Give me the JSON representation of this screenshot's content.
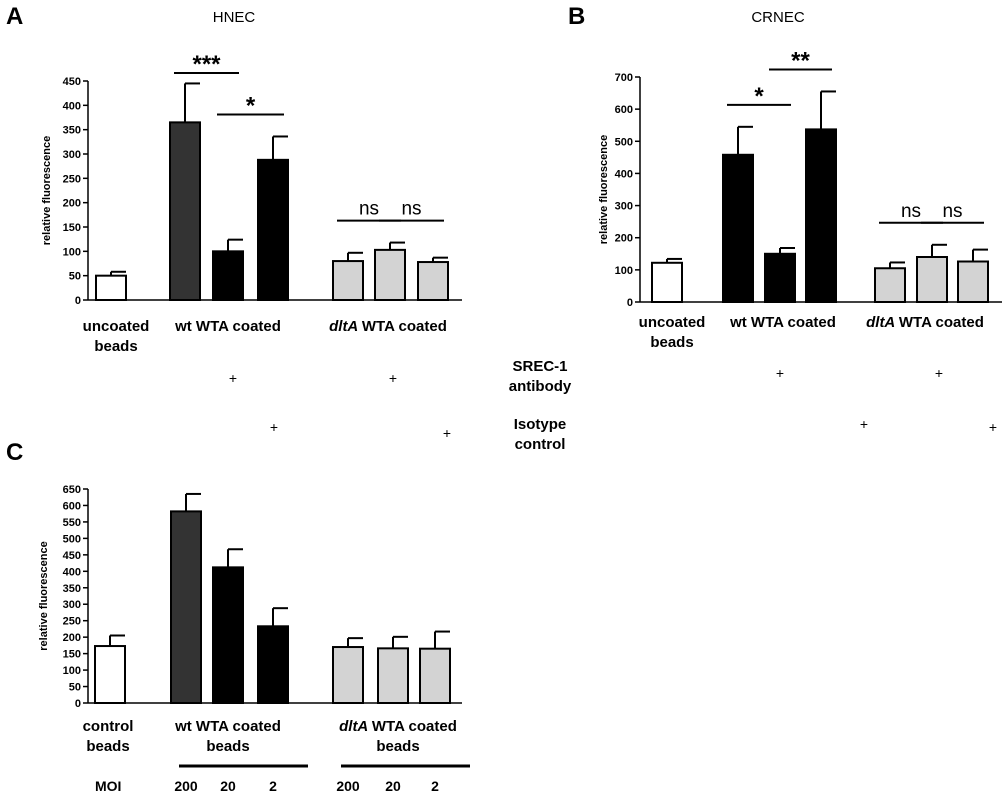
{
  "chart_data": [
    {
      "type": "bar",
      "panel": "A",
      "title": "HNEC",
      "ylabel": "relative fluorescence",
      "ylim": [
        0,
        450
      ],
      "yticks": [
        0,
        50,
        100,
        150,
        200,
        250,
        300,
        350,
        400,
        450
      ],
      "grid": false,
      "groups": [
        {
          "label": "uncoated\nbeads",
          "italic": "",
          "values": [
            50
          ],
          "errors": [
            8
          ],
          "fills": [
            "#ffffff"
          ]
        },
        {
          "label": "wt WTA coated",
          "italic": "",
          "values": [
            365,
            100,
            288
          ],
          "errors": [
            80,
            24,
            48
          ],
          "fills": [
            "#333333",
            "#000000",
            "#000000"
          ]
        },
        {
          "label": "WTA coated",
          "italic": "dltA",
          "values": [
            80,
            103,
            78
          ],
          "errors": [
            17,
            15,
            9
          ],
          "fills": [
            "#d3d3d3",
            "#d3d3d3",
            "#d3d3d3"
          ]
        }
      ],
      "significance": [
        {
          "text": "***",
          "bars": [
            [
              1,
              0
            ],
            [
              1,
              1
            ]
          ]
        },
        {
          "text": "*",
          "bars": [
            [
              1,
              1
            ],
            [
              1,
              2
            ]
          ]
        },
        {
          "text": "ns",
          "bars": [
            [
              2,
              0
            ],
            [
              2,
              1
            ]
          ]
        },
        {
          "text": "ns",
          "bars": [
            [
              2,
              1
            ],
            [
              2,
              2
            ]
          ]
        }
      ]
    },
    {
      "type": "bar",
      "panel": "B",
      "title": "CRNEC",
      "ylabel": "relative fluorescence",
      "ylim": [
        0,
        700
      ],
      "yticks": [
        0,
        100,
        200,
        300,
        400,
        500,
        600,
        700
      ],
      "grid": false,
      "groups": [
        {
          "label": "uncoated\nbeads",
          "italic": "",
          "values": [
            122
          ],
          "errors": [
            12
          ],
          "fills": [
            "#ffffff"
          ]
        },
        {
          "label": "wt WTA coated",
          "italic": "",
          "values": [
            458,
            150,
            537
          ],
          "errors": [
            87,
            18,
            118
          ],
          "fills": [
            "#000000",
            "#000000",
            "#000000"
          ]
        },
        {
          "label": "WTA coated",
          "italic": "dltA",
          "values": [
            105,
            140,
            126
          ],
          "errors": [
            18,
            38,
            37
          ],
          "fills": [
            "#d3d3d3",
            "#d3d3d3",
            "#d3d3d3"
          ]
        }
      ],
      "significance": [
        {
          "text": "*",
          "bars": [
            [
              1,
              0
            ],
            [
              1,
              1
            ]
          ]
        },
        {
          "text": "**",
          "bars": [
            [
              1,
              1
            ],
            [
              1,
              2
            ]
          ]
        },
        {
          "text": "ns",
          "bars": [
            [
              2,
              0
            ],
            [
              2,
              1
            ]
          ]
        },
        {
          "text": "ns",
          "bars": [
            [
              2,
              1
            ],
            [
              2,
              2
            ]
          ]
        }
      ]
    },
    {
      "type": "bar",
      "panel": "C",
      "title": "",
      "ylabel": "relative fluorescence",
      "ylim": [
        0,
        650
      ],
      "yticks": [
        0,
        50,
        100,
        150,
        200,
        250,
        300,
        350,
        400,
        450,
        500,
        550,
        600,
        650
      ],
      "grid": false,
      "groups": [
        {
          "label": "control\nbeads",
          "italic": "",
          "values": [
            173
          ],
          "errors": [
            32
          ],
          "fills": [
            "#ffffff"
          ]
        },
        {
          "label": "wt WTA coated\nbeads",
          "italic": "",
          "values": [
            582,
            412,
            233
          ],
          "errors": [
            53,
            55,
            55
          ],
          "fills": [
            "#333333",
            "#000000",
            "#000000"
          ]
        },
        {
          "label": "WTA coated\nbeads",
          "italic": "dltA",
          "values": [
            170,
            166,
            165
          ],
          "errors": [
            27,
            35,
            52
          ],
          "fills": [
            "#d3d3d3",
            "#d3d3d3",
            "#d3d3d3"
          ]
        }
      ],
      "moi_label": "MOI",
      "moi_values": [
        "200",
        "20",
        "2"
      ]
    }
  ],
  "legend_rows": {
    "antibody_label": "SREC-1\nantibody",
    "isotype_label": "Isotype\ncontrol",
    "plus": "+"
  },
  "panel_letters": [
    "A",
    "B",
    "C"
  ]
}
